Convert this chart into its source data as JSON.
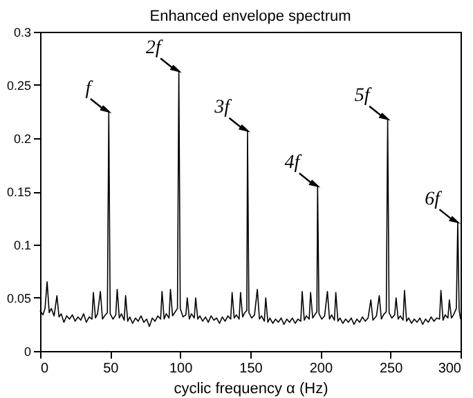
{
  "chart_data": {
    "type": "line",
    "title": "Enhanced envelope spectrum",
    "xlabel": "cyclic frequency α (Hz)",
    "x": [
      0,
      2,
      3.5,
      5,
      6.5,
      8,
      10,
      12,
      13.5,
      15,
      17,
      19,
      21,
      23,
      25,
      27,
      29,
      31,
      33,
      35,
      37,
      38,
      39.5,
      41,
      43,
      44.5,
      46,
      48,
      49,
      50,
      52,
      54,
      55,
      56.5,
      58,
      60,
      61,
      62.5,
      64,
      66,
      68,
      70,
      72,
      74,
      76,
      78,
      80,
      82,
      84,
      86,
      87,
      88.5,
      90,
      92,
      93,
      94.5,
      96,
      98,
      99,
      100,
      102,
      104,
      105,
      106.5,
      108,
      110,
      111,
      112.5,
      114,
      116,
      118,
      120,
      122,
      124,
      126,
      128,
      130,
      132,
      134,
      136,
      137,
      138.5,
      140,
      142,
      143,
      144.5,
      146,
      147.5,
      148,
      149,
      151,
      153,
      155,
      156.5,
      158,
      160,
      161,
      162.5,
      164,
      166,
      168,
      170,
      172,
      174,
      176,
      178,
      180,
      182,
      184,
      186,
      187,
      188.5,
      190,
      192,
      193,
      194.5,
      196,
      197.5,
      198,
      199,
      201,
      203,
      205,
      206.5,
      208,
      210,
      211,
      212.5,
      214,
      216,
      218,
      220,
      222,
      224,
      226,
      228,
      230,
      232,
      234,
      236,
      237.5,
      240,
      242,
      243.5,
      245,
      247,
      248,
      249,
      251,
      253,
      254,
      255.5,
      257,
      259,
      260,
      261.5,
      263,
      265,
      267,
      269,
      271,
      273,
      275,
      277,
      279,
      281,
      283,
      285,
      286,
      287.5,
      289,
      291,
      292,
      293.5,
      295,
      297,
      298,
      299,
      300
    ],
    "series": [
      {
        "color": "#000000",
        "values": [
          0.038,
          0.034,
          0.04,
          0.065,
          0.036,
          0.04,
          0.033,
          0.052,
          0.032,
          0.035,
          0.027,
          0.033,
          0.03,
          0.034,
          0.028,
          0.032,
          0.029,
          0.035,
          0.027,
          0.032,
          0.03,
          0.055,
          0.031,
          0.035,
          0.056,
          0.03,
          0.033,
          0.036,
          0.225,
          0.035,
          0.03,
          0.034,
          0.058,
          0.031,
          0.035,
          0.029,
          0.052,
          0.028,
          0.032,
          0.026,
          0.031,
          0.028,
          0.033,
          0.027,
          0.03,
          0.023,
          0.031,
          0.028,
          0.033,
          0.03,
          0.056,
          0.03,
          0.035,
          0.031,
          0.058,
          0.033,
          0.036,
          0.04,
          0.263,
          0.04,
          0.032,
          0.034,
          0.05,
          0.03,
          0.035,
          0.031,
          0.05,
          0.03,
          0.033,
          0.028,
          0.032,
          0.027,
          0.033,
          0.029,
          0.031,
          0.026,
          0.032,
          0.028,
          0.033,
          0.03,
          0.055,
          0.031,
          0.034,
          0.03,
          0.055,
          0.032,
          0.036,
          0.038,
          0.207,
          0.036,
          0.031,
          0.034,
          0.058,
          0.03,
          0.033,
          0.028,
          0.05,
          0.027,
          0.031,
          0.026,
          0.03,
          0.027,
          0.031,
          0.025,
          0.03,
          0.027,
          0.031,
          0.026,
          0.03,
          0.028,
          0.056,
          0.029,
          0.033,
          0.03,
          0.055,
          0.031,
          0.034,
          0.037,
          0.155,
          0.035,
          0.03,
          0.033,
          0.056,
          0.03,
          0.034,
          0.029,
          0.055,
          0.028,
          0.031,
          0.026,
          0.03,
          0.027,
          0.031,
          0.025,
          0.03,
          0.027,
          0.032,
          0.028,
          0.031,
          0.048,
          0.029,
          0.033,
          0.052,
          0.03,
          0.034,
          0.037,
          0.218,
          0.036,
          0.031,
          0.034,
          0.05,
          0.03,
          0.033,
          0.029,
          0.057,
          0.028,
          0.031,
          0.026,
          0.03,
          0.027,
          0.031,
          0.025,
          0.03,
          0.027,
          0.032,
          0.028,
          0.031,
          0.03,
          0.057,
          0.029,
          0.034,
          0.031,
          0.048,
          0.031,
          0.034,
          0.04,
          0.121,
          0.038,
          0.03
        ]
      }
    ],
    "xlim": [
      0,
      300
    ],
    "xticks": [
      0,
      50,
      100,
      150,
      200,
      250,
      300
    ],
    "ylim": [
      0,
      0.3
    ],
    "yticks": [
      0,
      0.05,
      0.1,
      0.15,
      0.2,
      0.25,
      0.3
    ],
    "grid": false,
    "line_style": "solid",
    "annotations": [
      {
        "text": "f",
        "x": 49,
        "y": 0.225
      },
      {
        "text": "2f",
        "x": 99,
        "y": 0.263
      },
      {
        "text": "3f",
        "x": 148,
        "y": 0.207
      },
      {
        "text": "4f",
        "x": 198,
        "y": 0.155
      },
      {
        "text": "5f",
        "x": 248,
        "y": 0.218
      },
      {
        "text": "6f",
        "x": 298,
        "y": 0.121
      }
    ]
  }
}
